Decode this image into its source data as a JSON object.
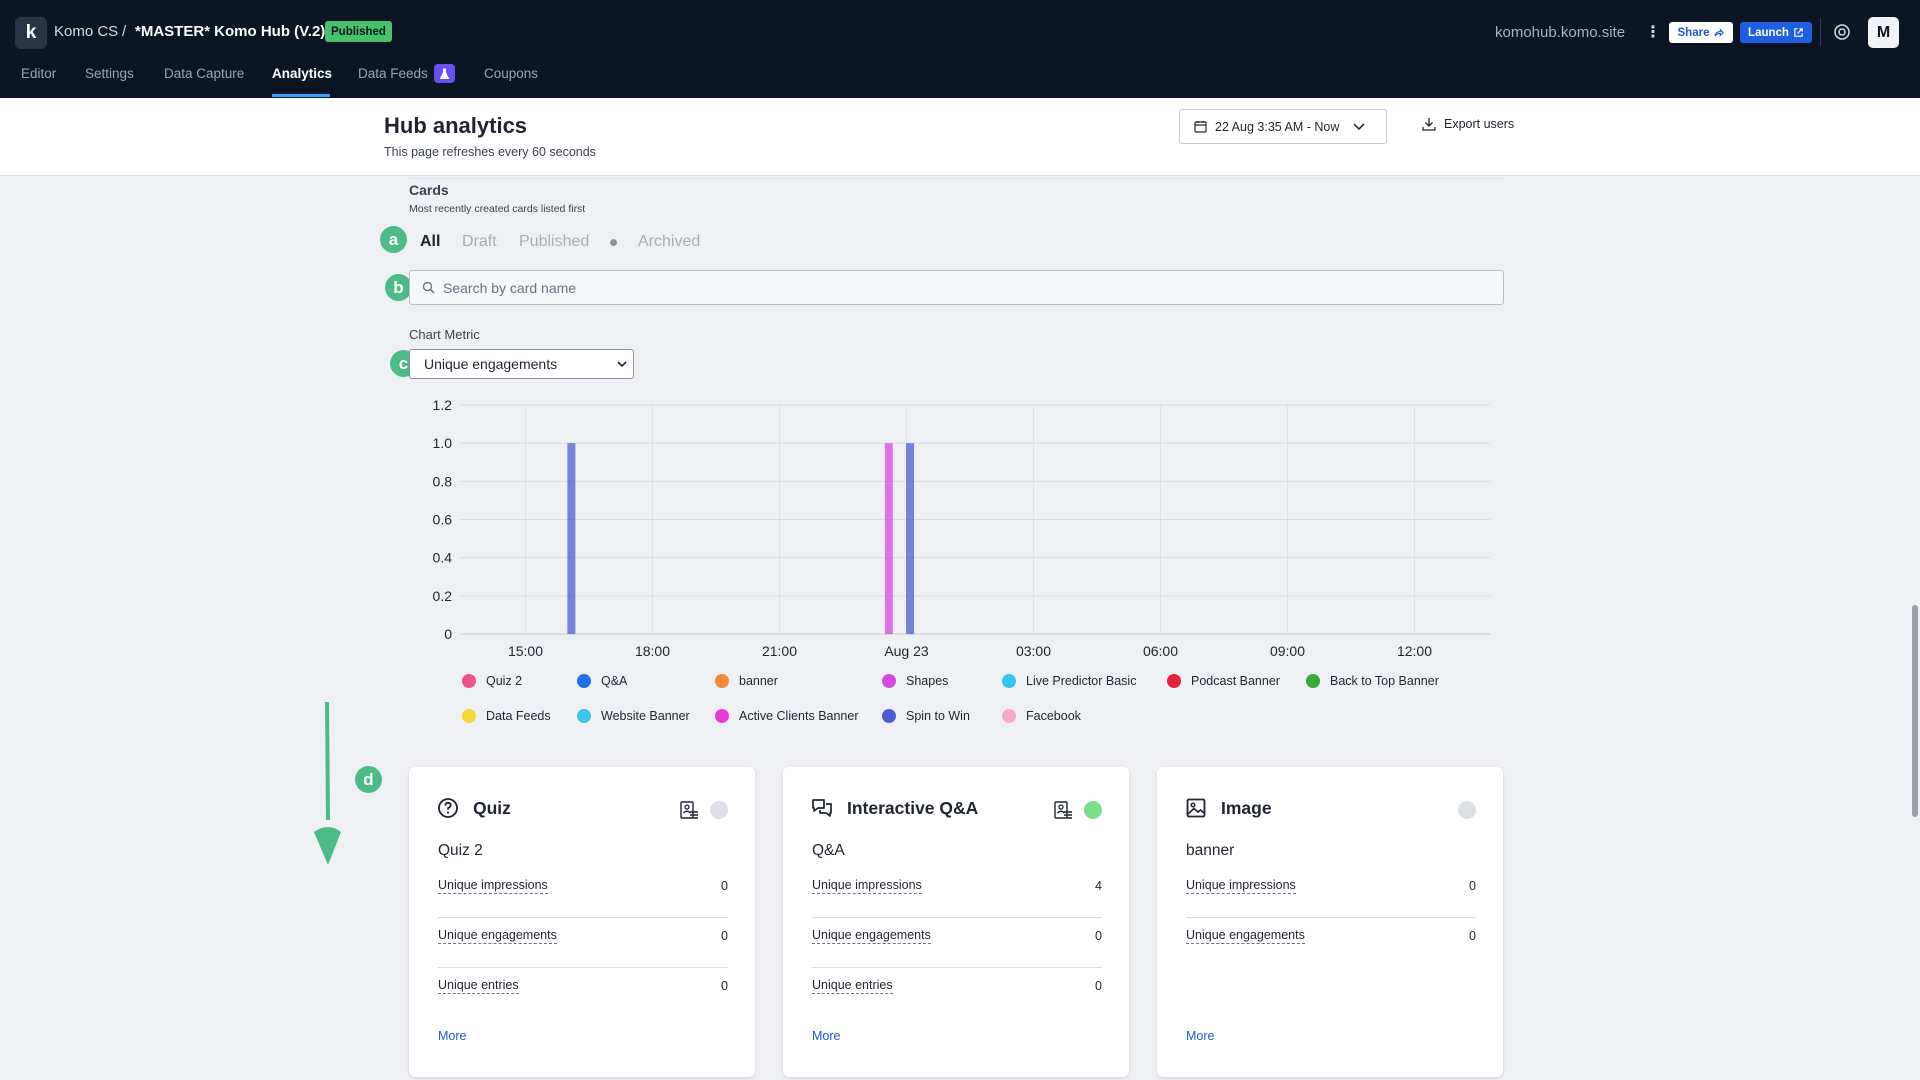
{
  "topbar": {
    "logo": "k",
    "org": "Komo CS",
    "separator": "/",
    "hub_name": "*MASTER* Komo Hub (V.2)",
    "status_badge": "Published",
    "domain": "komohub.komo.site",
    "kebab": "⋮",
    "share_label": "Share",
    "launch_label": "Launch",
    "avatar_initial": "M",
    "tabs": [
      "Editor",
      "Settings",
      "Data Capture",
      "Analytics",
      "Data Feeds",
      "Coupons"
    ],
    "active_tab": "Analytics",
    "accent": "#3aa0ff",
    "beta_icon_color": "#6a4ff0"
  },
  "header": {
    "title": "Hub analytics",
    "subtitle": "This page refreshes every 60 seconds",
    "date_range": "22 Aug 3:35 AM - Now",
    "export_label": "Export users"
  },
  "cards_section": {
    "title": "Cards",
    "subtitle": "Most recently created cards listed first",
    "filters": [
      "All",
      "Draft",
      "Published",
      "Archived"
    ],
    "active_filter": "All",
    "search_placeholder": "Search by card name",
    "chart_metric_label": "Chart Metric",
    "chart_metric_value": "Unique engagements",
    "annotations": [
      "a",
      "b",
      "c",
      "d"
    ]
  },
  "chart_data": {
    "type": "bar",
    "title": "",
    "xlabel": "",
    "ylabel": "",
    "ylim": [
      0,
      1.2
    ],
    "yticks": [
      "0",
      "0.2",
      "0.4",
      "0.6",
      "0.8",
      "1.0",
      "1.2"
    ],
    "xticks": [
      "15:00",
      "18:00",
      "21:00",
      "Aug 23",
      "03:00",
      "06:00",
      "09:00",
      "12:00"
    ],
    "grid": true,
    "legend_position": "bottom",
    "series": [
      {
        "name": "Quiz 2",
        "color": "#f0538a",
        "points": []
      },
      {
        "name": "Q&A",
        "color": "#1f6fe8",
        "points": []
      },
      {
        "name": "banner",
        "color": "#f28a3c",
        "points": []
      },
      {
        "name": "Shapes",
        "color": "#d44ae0",
        "points": [
          {
            "x": "23:35",
            "y": 1
          }
        ]
      },
      {
        "name": "Live Predictor Basic",
        "color": "#35c6f0",
        "points": []
      },
      {
        "name": "Podcast Banner",
        "color": "#e0243e",
        "points": []
      },
      {
        "name": "Back to Top Banner",
        "color": "#3aaa3a",
        "points": []
      },
      {
        "name": "Data Feeds",
        "color": "#f7d733",
        "points": []
      },
      {
        "name": "Website Banner",
        "color": "#3ec4e8",
        "points": []
      },
      {
        "name": "Active Clients Banner",
        "color": "#e83ad8",
        "points": []
      },
      {
        "name": "Spin to Win",
        "color": "#4a5fd0",
        "points": [
          {
            "x": "16:05",
            "y": 1
          },
          {
            "x": "00:05",
            "y": 1
          }
        ]
      },
      {
        "name": "Facebook",
        "color": "#f5a9c8",
        "points": []
      }
    ]
  },
  "cards": [
    {
      "type": "Quiz",
      "icon": "question-circle-icon",
      "name": "Quiz 2",
      "status_color": "#dcdfe4",
      "has_stats_icon": true,
      "stats": [
        {
          "label": "Unique impressions",
          "value": "0"
        },
        {
          "label": "Unique engagements",
          "value": "0"
        },
        {
          "label": "Unique entries",
          "value": "0"
        }
      ],
      "more": "More"
    },
    {
      "type": "Interactive Q&A",
      "icon": "chat-bubbles-icon",
      "name": "Q&A",
      "status_color": "#7be08c",
      "has_stats_icon": true,
      "stats": [
        {
          "label": "Unique impressions",
          "value": "4"
        },
        {
          "label": "Unique engagements",
          "value": "0"
        },
        {
          "label": "Unique entries",
          "value": "0"
        }
      ],
      "more": "More"
    },
    {
      "type": "Image",
      "icon": "image-icon",
      "name": "banner",
      "status_color": "#dcdfe4",
      "has_stats_icon": false,
      "stats": [
        {
          "label": "Unique impressions",
          "value": "0"
        },
        {
          "label": "Unique engagements",
          "value": "0"
        }
      ],
      "more": "More"
    }
  ]
}
